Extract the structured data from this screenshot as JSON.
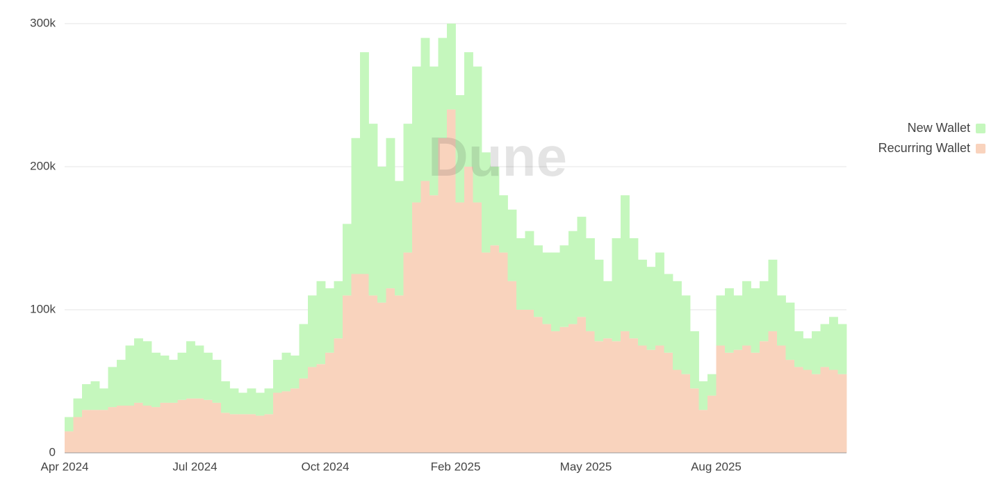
{
  "chart_data": {
    "type": "stacked-bar",
    "watermark": "Dune",
    "categories": [
      "Apr 2024",
      null,
      null,
      null,
      null,
      null,
      null,
      null,
      null,
      null,
      null,
      null,
      null,
      null,
      null,
      "Jul 2024",
      null,
      null,
      null,
      null,
      null,
      null,
      null,
      null,
      null,
      null,
      null,
      null,
      null,
      null,
      "Oct 2024",
      null,
      null,
      null,
      null,
      null,
      null,
      null,
      null,
      null,
      null,
      null,
      null,
      null,
      null,
      "Feb 2025",
      null,
      null,
      null,
      null,
      null,
      null,
      null,
      null,
      null,
      null,
      null,
      null,
      null,
      null,
      "May 2025",
      null,
      null,
      null,
      null,
      null,
      null,
      null,
      null,
      null,
      null,
      null,
      null,
      null,
      null,
      "Aug 2025",
      null,
      null,
      null,
      null,
      null,
      null,
      null,
      null,
      null,
      null,
      null,
      null,
      null,
      null
    ],
    "series": [
      {
        "name": "Recurring Wallet",
        "color": "#f9d3bd",
        "values": [
          15000,
          25000,
          30000,
          30000,
          30000,
          32000,
          33000,
          33000,
          35000,
          33000,
          32000,
          35000,
          35000,
          37000,
          38000,
          38000,
          37000,
          35000,
          28000,
          27000,
          27000,
          27000,
          26000,
          27000,
          42000,
          43000,
          45000,
          52000,
          60000,
          62000,
          70000,
          80000,
          110000,
          125000,
          125000,
          110000,
          105000,
          115000,
          110000,
          140000,
          175000,
          190000,
          180000,
          220000,
          240000,
          175000,
          200000,
          175000,
          140000,
          145000,
          140000,
          120000,
          100000,
          100000,
          95000,
          90000,
          85000,
          88000,
          90000,
          95000,
          85000,
          78000,
          80000,
          78000,
          85000,
          80000,
          75000,
          72000,
          75000,
          70000,
          58000,
          55000,
          45000,
          30000,
          40000,
          75000,
          70000,
          72000,
          75000,
          70000,
          78000,
          85000,
          75000,
          65000,
          60000,
          58000,
          55000,
          60000,
          58000,
          55000
        ]
      },
      {
        "name": "New Wallet",
        "color": "#c5f7bd",
        "values": [
          10000,
          13000,
          18000,
          20000,
          15000,
          28000,
          32000,
          42000,
          45000,
          45000,
          38000,
          33000,
          30000,
          33000,
          40000,
          37000,
          33000,
          30000,
          22000,
          18000,
          15000,
          18000,
          16000,
          18000,
          23000,
          27000,
          23000,
          38000,
          50000,
          58000,
          45000,
          40000,
          50000,
          95000,
          155000,
          120000,
          95000,
          105000,
          80000,
          90000,
          95000,
          100000,
          90000,
          70000,
          60000,
          75000,
          80000,
          95000,
          70000,
          55000,
          40000,
          50000,
          50000,
          55000,
          50000,
          50000,
          55000,
          57000,
          65000,
          70000,
          65000,
          57000,
          40000,
          72000,
          95000,
          70000,
          60000,
          58000,
          65000,
          55000,
          62000,
          55000,
          40000,
          20000,
          15000,
          35000,
          45000,
          38000,
          45000,
          45000,
          42000,
          50000,
          35000,
          40000,
          25000,
          22000,
          30000,
          30000,
          37000,
          35000
        ]
      }
    ],
    "ylim": [
      0,
      316000
    ],
    "yticks": [
      0,
      {
        "value": 100000,
        "label": "100k"
      },
      {
        "value": 200000,
        "label": "200k"
      },
      {
        "value": 300000,
        "label": "300k"
      }
    ],
    "grid": true,
    "legend": "right"
  }
}
